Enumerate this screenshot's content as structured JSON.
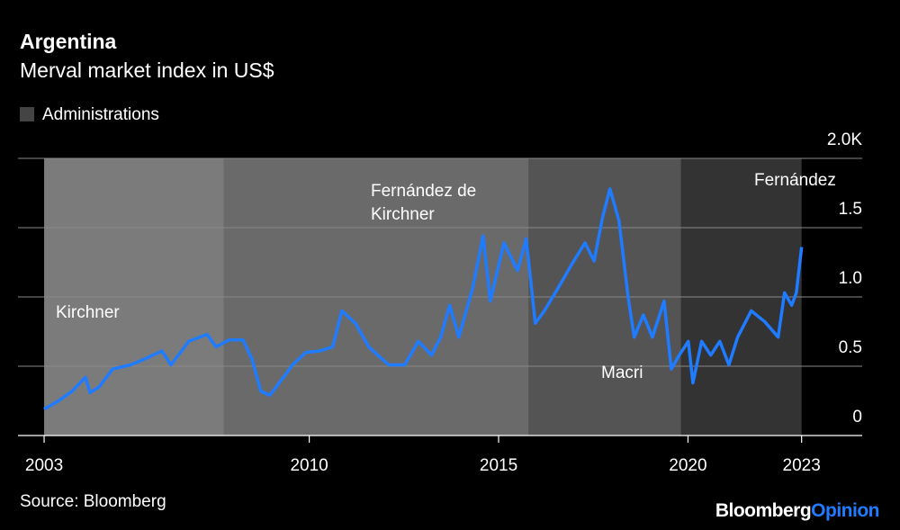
{
  "chart_data": {
    "type": "line",
    "title": "Argentina",
    "subtitle": "Merval market index in US$",
    "legend_label": "Administrations",
    "legend_color": "#444444",
    "source": "Source: Bloomberg",
    "brand": [
      "Bloomberg",
      "Opinion"
    ],
    "administrations": [
      {
        "label": [
          "Kirchner"
        ],
        "start": 2003,
        "end": 2007.75,
        "color": "#7b7b7b"
      },
      {
        "label": [
          "Fernández de",
          "Kirchner"
        ],
        "start": 2007.75,
        "end": 2015.8,
        "color": "#6a6a6a"
      },
      {
        "label": [
          "Macri"
        ],
        "start": 2015.8,
        "end": 2019.82,
        "color": "#545454"
      },
      {
        "label": [
          "Fernández"
        ],
        "start": 2019.82,
        "end": 2023,
        "color": "#333333"
      }
    ],
    "x": [
      2003.0,
      2003.38,
      2003.74,
      2004.09,
      2004.21,
      2004.45,
      2004.81,
      2005.28,
      2005.64,
      2006.11,
      2006.35,
      2006.82,
      2007.3,
      2007.54,
      2007.89,
      2008.25,
      2008.49,
      2008.72,
      2008.96,
      2009.32,
      2009.56,
      2009.91,
      2010.27,
      2010.62,
      2010.86,
      2011.22,
      2011.57,
      2011.81,
      2012.1,
      2012.52,
      2012.88,
      2013.23,
      2013.47,
      2013.71,
      2013.95,
      2014.31,
      2014.59,
      2014.78,
      2015.14,
      2015.5,
      2015.73,
      2015.97,
      2016.21,
      2016.56,
      2016.92,
      2017.28,
      2017.52,
      2017.75,
      2017.94,
      2018.18,
      2018.42,
      2018.58,
      2018.82,
      2019.06,
      2019.37,
      2019.56,
      2019.77,
      2020.01,
      2020.13,
      2020.36,
      2020.6,
      2020.84,
      2021.08,
      2021.31,
      2021.67,
      2022.03,
      2022.38,
      2022.55,
      2022.74,
      2022.86,
      2023.0
    ],
    "series": [
      {
        "name": "Merval",
        "color": "#1f7bff",
        "values": [
          0.19,
          0.25,
          0.32,
          0.42,
          0.31,
          0.35,
          0.48,
          0.51,
          0.55,
          0.61,
          0.51,
          0.68,
          0.73,
          0.64,
          0.69,
          0.69,
          0.55,
          0.32,
          0.29,
          0.42,
          0.51,
          0.6,
          0.61,
          0.64,
          0.9,
          0.81,
          0.64,
          0.58,
          0.51,
          0.51,
          0.68,
          0.58,
          0.71,
          0.94,
          0.71,
          1.06,
          1.44,
          0.97,
          1.39,
          1.19,
          1.42,
          0.81,
          0.9,
          1.06,
          1.23,
          1.39,
          1.26,
          1.58,
          1.78,
          1.55,
          1.0,
          0.71,
          0.87,
          0.71,
          0.97,
          0.48,
          0.58,
          0.68,
          0.38,
          0.68,
          0.58,
          0.68,
          0.51,
          0.71,
          0.9,
          0.82,
          0.71,
          1.03,
          0.94,
          1.03,
          1.36
        ]
      }
    ],
    "xlim": [
      2002.31,
      2024.6
    ],
    "ylim": [
      0,
      2
    ],
    "xticks": [
      2003,
      2010,
      2015,
      2020,
      2023
    ],
    "yticks": [
      0,
      0.5,
      {
        "value": 1,
        "label": "1.0"
      },
      1.5,
      {
        "value": 2,
        "label": "2.0K"
      }
    ],
    "grid": true
  }
}
